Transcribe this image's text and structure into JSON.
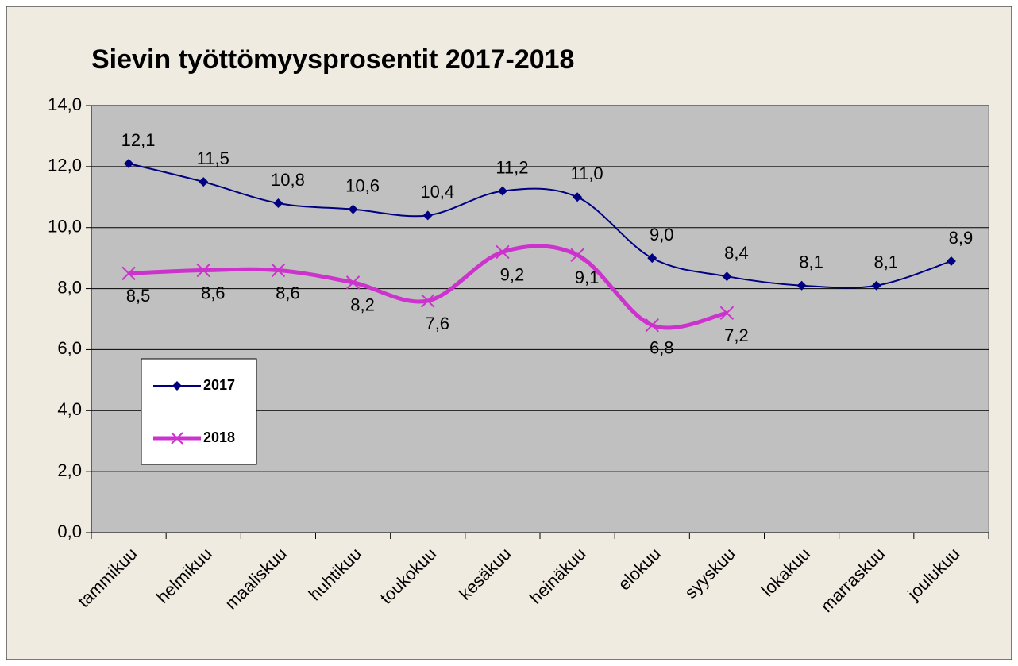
{
  "chart_data": {
    "type": "line",
    "title": "Sievin työttömyysprosentit 2017-2018",
    "categories": [
      "tammikuu",
      "helmikuu",
      "maaliskuu",
      "huhtikuu",
      "toukokuu",
      "kesäkuu",
      "heinäkuu",
      "elokuu",
      "syyskuu",
      "lokakuu",
      "marraskuu",
      "joulukuu"
    ],
    "series": [
      {
        "name": "2017",
        "color": "#000080",
        "marker": "diamond",
        "values": [
          12.1,
          11.5,
          10.8,
          10.6,
          10.4,
          11.2,
          11.0,
          9.0,
          8.4,
          8.1,
          8.1,
          8.9
        ],
        "value_labels": [
          "12,1",
          "11,5",
          "10,8",
          "10,6",
          "10,4",
          "11,2",
          "11,0",
          "9,0",
          "8,4",
          "8,1",
          "8,1",
          "8,9"
        ]
      },
      {
        "name": "2018",
        "color": "#cc33cc",
        "marker": "x",
        "values": [
          8.5,
          8.6,
          8.6,
          8.2,
          7.6,
          9.2,
          9.1,
          6.8,
          7.2,
          null,
          null,
          null
        ],
        "value_labels": [
          "8,5",
          "8,6",
          "8,6",
          "8,2",
          "7,6",
          "9,2",
          "9,1",
          "6,8",
          "7,2",
          null,
          null,
          null
        ]
      }
    ],
    "ylim": [
      0,
      14
    ],
    "yticks": [
      {
        "value": 0,
        "label": "0,0"
      },
      {
        "value": 2,
        "label": "2,0"
      },
      {
        "value": 4,
        "label": "4,0"
      },
      {
        "value": 6,
        "label": "6,0"
      },
      {
        "value": 8,
        "label": "8,0"
      },
      {
        "value": 10,
        "label": "10,0"
      },
      {
        "value": 12,
        "label": "12,0"
      },
      {
        "value": 14,
        "label": "14,0"
      }
    ],
    "grid": true,
    "smooth": true
  }
}
